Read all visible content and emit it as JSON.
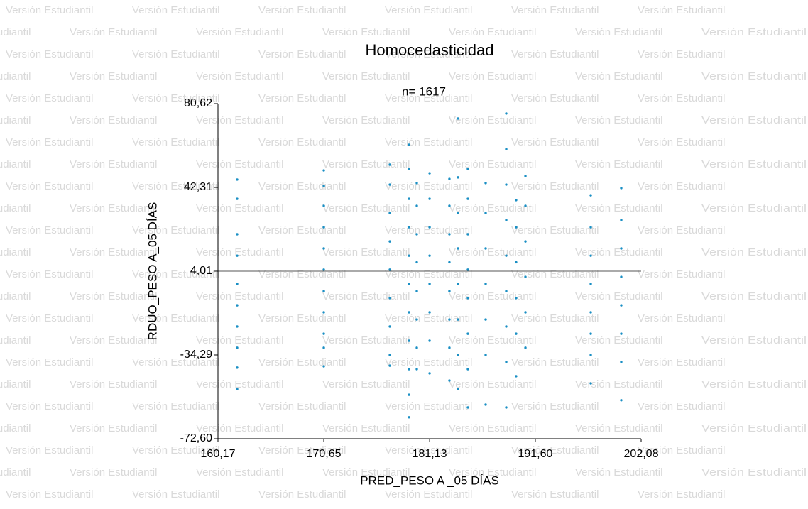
{
  "watermark": "Versión Estudiantil",
  "chart_data": {
    "type": "scatter",
    "title": "Homocedasticidad",
    "subtitle": "n= 1617",
    "x_label": "PRED_PESO A _05 DÍAS",
    "y_label": "RDUO_PESO A_05 DÍAS",
    "color": "#1a8fc4",
    "reference_line": 4.01,
    "xlim": [
      160.17,
      202.08
    ],
    "xticks": [
      {
        "value": 160.17,
        "label": "160,17"
      },
      {
        "value": 170.65,
        "label": "170,65"
      },
      {
        "value": 181.13,
        "label": "181,13"
      },
      {
        "value": 191.6,
        "label": "191,60"
      },
      {
        "value": 202.08,
        "label": "202,08"
      }
    ],
    "ylim": [
      -72.6,
      80.62
    ],
    "yticks": [
      {
        "value": -72.6,
        "label": "-72,60"
      },
      {
        "value": -34.29,
        "label": "-34,29"
      },
      {
        "value": 4.01,
        "label": "4,01"
      },
      {
        "value": 42.31,
        "label": "42,31"
      },
      {
        "value": 80.62,
        "label": "80,62"
      }
    ],
    "x": [
      162.07,
      162.07,
      162.07,
      162.07,
      162.07,
      162.07,
      162.07,
      162.07,
      162.07,
      162.07,
      170.65,
      170.65,
      170.65,
      170.65,
      170.65,
      170.65,
      170.65,
      170.65,
      170.65,
      170.65,
      170.65,
      177.19,
      177.19,
      177.19,
      177.19,
      177.19,
      177.19,
      177.19,
      177.19,
      177.19,
      179.09,
      179.09,
      179.09,
      179.09,
      179.09,
      179.09,
      179.09,
      179.09,
      179.09,
      179.09,
      179.09,
      179.86,
      179.86,
      179.86,
      179.86,
      179.86,
      179.86,
      179.86,
      179.86,
      181.13,
      181.13,
      181.13,
      181.13,
      181.13,
      181.13,
      181.13,
      181.13,
      183.09,
      183.09,
      183.09,
      183.09,
      183.09,
      183.09,
      183.09,
      183.09,
      183.94,
      183.94,
      183.94,
      183.94,
      183.94,
      183.94,
      183.94,
      183.94,
      184.92,
      184.92,
      184.92,
      184.92,
      184.92,
      184.92,
      184.92,
      184.92,
      186.68,
      186.68,
      186.68,
      186.68,
      186.68,
      186.68,
      186.68,
      188.72,
      188.72,
      188.72,
      188.72,
      188.72,
      188.72,
      188.72,
      188.72,
      188.72,
      189.7,
      189.7,
      189.7,
      189.7,
      189.7,
      189.7,
      190.62,
      190.62,
      190.62,
      190.62,
      190.62,
      190.62,
      197.09,
      197.09,
      197.09,
      197.09,
      197.09,
      197.09,
      197.09,
      197.09,
      200.11,
      200.11,
      200.11,
      200.11,
      200.11,
      200.11,
      200.11,
      200.11
    ],
    "values": [
      45.9,
      37.1,
      20.9,
      11.1,
      -1.8,
      -11.6,
      -21.3,
      -31.0,
      -40.1,
      -49.9,
      50.1,
      43.0,
      33.9,
      24.1,
      14.4,
      4.7,
      -5.1,
      -14.8,
      -24.6,
      -31.0,
      -39.5,
      52.7,
      43.6,
      30.6,
      17.6,
      4.7,
      -8.3,
      -21.3,
      -34.3,
      -39.2,
      61.8,
      50.8,
      37.1,
      24.1,
      11.1,
      -1.8,
      -14.8,
      -27.8,
      -40.8,
      -52.5,
      -62.8,
      44.3,
      33.9,
      20.9,
      8.1,
      -5.1,
      -18.1,
      -31.0,
      -40.8,
      48.8,
      37.1,
      24.1,
      11.1,
      -1.8,
      -14.8,
      -27.8,
      -42.7,
      46.2,
      33.9,
      20.9,
      8.1,
      -5.1,
      -18.1,
      -31.0,
      -46.0,
      73.8,
      46.9,
      30.6,
      14.4,
      -1.8,
      -18.1,
      -34.3,
      -49.9,
      50.8,
      37.1,
      20.9,
      4.7,
      -8.3,
      -24.6,
      -40.8,
      -58.3,
      44.3,
      30.6,
      14.4,
      -1.8,
      -18.1,
      -34.3,
      -57.0,
      76.1,
      59.8,
      43.6,
      27.4,
      11.1,
      -5.1,
      -21.3,
      -37.5,
      -58.3,
      36.5,
      24.1,
      8.1,
      -8.3,
      -24.6,
      -44.0,
      47.5,
      33.9,
      17.6,
      1.4,
      -14.8,
      -31.0,
      38.7,
      24.1,
      11.1,
      -1.8,
      -14.8,
      -24.6,
      -34.3,
      -47.3,
      42.0,
      27.4,
      14.4,
      1.4,
      -11.6,
      -24.6,
      -37.5,
      -55.0
    ]
  }
}
